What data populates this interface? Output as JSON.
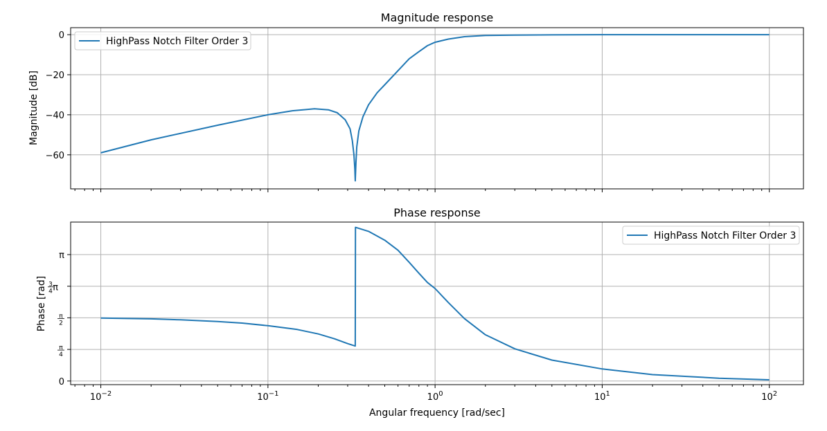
{
  "chart_data": [
    {
      "type": "line",
      "title": "Magnitude response",
      "ylabel": "Magnitude [dB]",
      "xscale": "log",
      "xlim": [
        0.0066,
        160
      ],
      "ylim": [
        -77,
        3.5
      ],
      "yticks": [
        0,
        -20,
        -40,
        -60
      ],
      "ytick_labels": [
        "0",
        "−20",
        "−40",
        "−60"
      ],
      "grid": true,
      "legend_position": "top-left",
      "series": [
        {
          "name": "HighPass Notch Filter Order 3",
          "color": "#1f77b4",
          "points": [
            [
              0.01,
              -59.0
            ],
            [
              0.02,
              -52.5
            ],
            [
              0.05,
              -45.2
            ],
            [
              0.1,
              -40.0
            ],
            [
              0.14,
              -38.0
            ],
            [
              0.19,
              -37.0
            ],
            [
              0.23,
              -37.5
            ],
            [
              0.26,
              -39.0
            ],
            [
              0.29,
              -42.5
            ],
            [
              0.31,
              -47.0
            ],
            [
              0.32,
              -53.0
            ],
            [
              0.327,
              -60.0
            ],
            [
              0.331,
              -67.0
            ],
            [
              0.333,
              -73.0
            ],
            [
              0.336,
              -64.0
            ],
            [
              0.34,
              -56.0
            ],
            [
              0.35,
              -48.0
            ],
            [
              0.37,
              -41.0
            ],
            [
              0.4,
              -35.0
            ],
            [
              0.45,
              -29.0
            ],
            [
              0.5,
              -25.0
            ],
            [
              0.6,
              -18.0
            ],
            [
              0.7,
              -12.0
            ],
            [
              0.8,
              -8.5
            ],
            [
              0.9,
              -5.5
            ],
            [
              1.0,
              -3.8
            ],
            [
              1.2,
              -2.2
            ],
            [
              1.5,
              -1.0
            ],
            [
              2.0,
              -0.4
            ],
            [
              3.0,
              -0.2
            ],
            [
              5.0,
              -0.1
            ],
            [
              10.0,
              0.0
            ],
            [
              100.0,
              0.0
            ]
          ]
        }
      ]
    },
    {
      "type": "line",
      "title": "Phase response",
      "xlabel": "Angular frequency [rad/sec]",
      "ylabel": "Phase [rad]",
      "xscale": "log",
      "xlim": [
        0.0066,
        160
      ],
      "ylim": [
        -0.09,
        3.95
      ],
      "yticks": [
        0,
        0.7854,
        1.5708,
        2.3562,
        3.1416
      ],
      "ytick_labels": [
        "0",
        "π/4",
        "π/2",
        "3/4π",
        "π"
      ],
      "xticks": [
        0.01,
        0.1,
        1,
        10,
        100
      ],
      "xtick_labels": [
        "10−2",
        "10−1",
        "100",
        "101",
        "102"
      ],
      "grid": true,
      "legend_position": "top-right",
      "series": [
        {
          "name": "HighPass Notch Filter Order 3",
          "color": "#1f77b4",
          "points": [
            [
              0.01,
              1.565
            ],
            [
              0.02,
              1.545
            ],
            [
              0.03,
              1.52
            ],
            [
              0.05,
              1.48
            ],
            [
              0.07,
              1.44
            ],
            [
              0.1,
              1.375
            ],
            [
              0.15,
              1.28
            ],
            [
              0.2,
              1.17
            ],
            [
              0.25,
              1.05
            ],
            [
              0.3,
              0.93
            ],
            [
              0.333,
              0.87
            ],
            [
              0.334,
              3.82
            ],
            [
              0.4,
              3.72
            ],
            [
              0.5,
              3.5
            ],
            [
              0.6,
              3.25
            ],
            [
              0.7,
              2.95
            ],
            [
              0.8,
              2.68
            ],
            [
              0.9,
              2.45
            ],
            [
              1.0,
              2.3
            ],
            [
              1.2,
              1.95
            ],
            [
              1.5,
              1.55
            ],
            [
              2.0,
              1.15
            ],
            [
              3.0,
              0.8
            ],
            [
              5.0,
              0.52
            ],
            [
              10.0,
              0.3
            ],
            [
              20.0,
              0.16
            ],
            [
              50.0,
              0.07
            ],
            [
              100.0,
              0.03
            ]
          ]
        }
      ]
    }
  ]
}
